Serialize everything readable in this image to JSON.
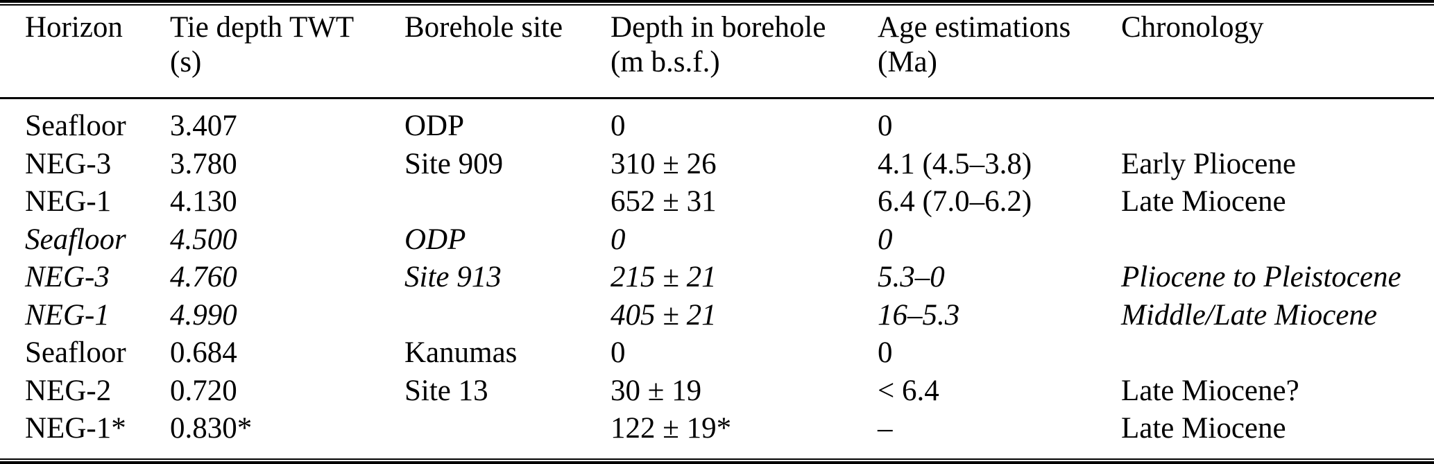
{
  "colors": {
    "text": "#000000",
    "background": "#ffffff",
    "rule": "#000000"
  },
  "table": {
    "columns": [
      {
        "label": "Horizon",
        "sub": ""
      },
      {
        "label": "Tie depth TWT",
        "sub": "(s)"
      },
      {
        "label": "Borehole site",
        "sub": ""
      },
      {
        "label": "Depth in borehole",
        "sub": "(m b.s.f.)"
      },
      {
        "label": "Age estimations",
        "sub": "(Ma)"
      },
      {
        "label": "Chronology",
        "sub": ""
      }
    ],
    "rows": [
      {
        "horizon": "Seafloor",
        "tie_depth_twt_s": "3.407",
        "borehole_site": "ODP",
        "depth_in_borehole_mbsf": "0",
        "age_estimation_ma": "0",
        "chronology": "",
        "italic": false
      },
      {
        "horizon": "NEG-3",
        "tie_depth_twt_s": "3.780",
        "borehole_site": "Site 909",
        "depth_in_borehole_mbsf": "310 ± 26",
        "age_estimation_ma": "4.1 (4.5–3.8)",
        "chronology": "Early Pliocene",
        "italic": false
      },
      {
        "horizon": "NEG-1",
        "tie_depth_twt_s": "4.130",
        "borehole_site": "",
        "depth_in_borehole_mbsf": "652 ± 31",
        "age_estimation_ma": "6.4 (7.0–6.2)",
        "chronology": "Late Miocene",
        "italic": false
      },
      {
        "horizon": "Seafloor",
        "tie_depth_twt_s": "4.500",
        "borehole_site": "ODP",
        "depth_in_borehole_mbsf": "0",
        "age_estimation_ma": "0",
        "chronology": "",
        "italic": true
      },
      {
        "horizon": "NEG-3",
        "tie_depth_twt_s": "4.760",
        "borehole_site": "Site 913",
        "depth_in_borehole_mbsf": "215 ± 21",
        "age_estimation_ma": "5.3–0",
        "chronology": "Pliocene to Pleistocene",
        "italic": true
      },
      {
        "horizon": "NEG-1",
        "tie_depth_twt_s": "4.990",
        "borehole_site": "",
        "depth_in_borehole_mbsf": "405 ± 21",
        "age_estimation_ma": "16–5.3",
        "chronology": "Middle/Late Miocene",
        "italic": true
      },
      {
        "horizon": "Seafloor",
        "tie_depth_twt_s": "0.684",
        "borehole_site": "Kanumas",
        "depth_in_borehole_mbsf": "0",
        "age_estimation_ma": "0",
        "chronology": "",
        "italic": false
      },
      {
        "horizon": "NEG-2",
        "tie_depth_twt_s": "0.720",
        "borehole_site": "Site 13",
        "depth_in_borehole_mbsf": "30 ± 19",
        "age_estimation_ma": "< 6.4",
        "chronology": "Late Miocene?",
        "italic": false
      },
      {
        "horizon": "NEG-1*",
        "tie_depth_twt_s": "0.830*",
        "borehole_site": "",
        "depth_in_borehole_mbsf": "122 ± 19*",
        "age_estimation_ma": "–",
        "chronology": "Late Miocene",
        "italic": false
      }
    ]
  }
}
